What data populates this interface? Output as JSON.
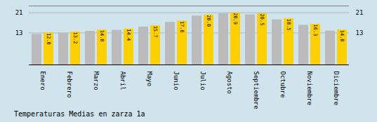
{
  "chart_data": {
    "type": "bar",
    "title": "Temperaturas Medias en zarza 1a",
    "categories": [
      "Enero",
      "Febrero",
      "Marzo",
      "Abril",
      "Mayo",
      "Junio",
      "Julio",
      "Agosto",
      "Septiembre",
      "Octubre",
      "Noviembre",
      "Diciembre"
    ],
    "series": [
      {
        "color": "#BBBBBB",
        "values": [
          12.3,
          12.7,
          13.5,
          13.9,
          15.2,
          17.1,
          19.6,
          20.5,
          20.1,
          18.1,
          15.9,
          13.6
        ]
      },
      {
        "color": "#FFD000",
        "values": [
          12.8,
          13.2,
          14.0,
          14.4,
          15.7,
          17.6,
          20.0,
          20.9,
          20.5,
          18.5,
          16.3,
          14.0
        ],
        "data_labels": true,
        "value_labels": [
          "12.8",
          "13.2",
          "14.0",
          "14.4",
          "15.7",
          "17.6",
          "20.0",
          "20.9",
          "20.5",
          "18.5",
          "16.3",
          "14.0"
        ]
      }
    ],
    "ylim": [
      0,
      23.617
    ],
    "yticks": [
      12.8,
      20.9
    ],
    "y2lim": [
      0,
      23.617
    ],
    "y2ticks": [
      12.8,
      20.9
    ],
    "grid": true
  }
}
